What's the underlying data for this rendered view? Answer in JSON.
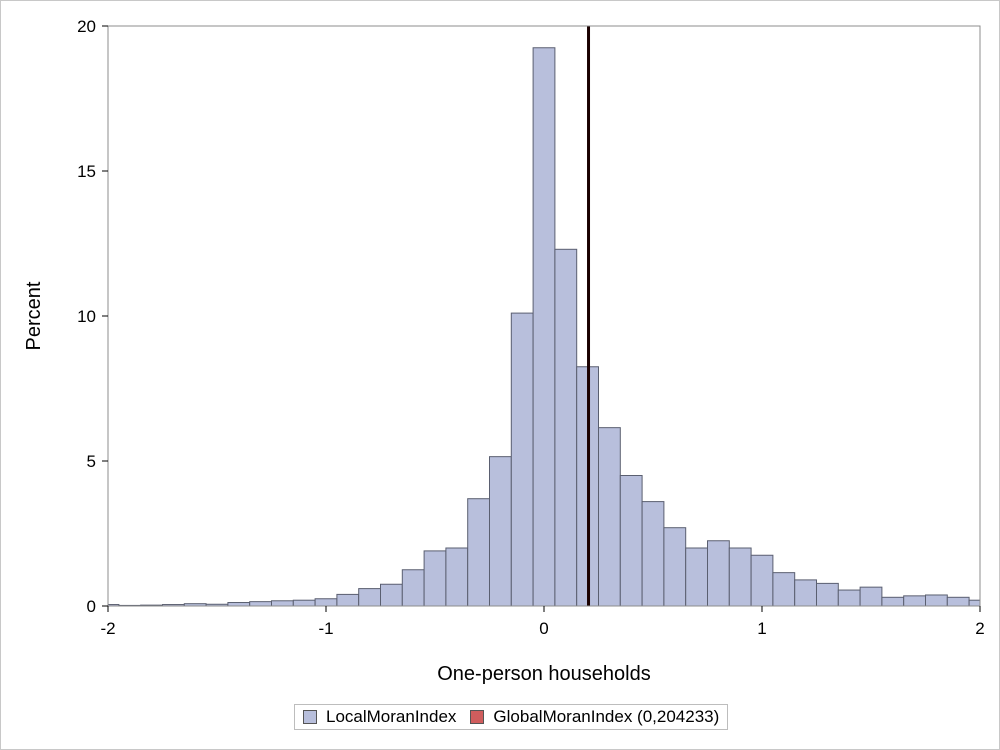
{
  "chart_data": {
    "type": "bar",
    "xlabel": "One-person households",
    "ylabel": "Percent",
    "xlim": [
      -2,
      2
    ],
    "ylim": [
      0,
      20
    ],
    "xticks": [
      "-2",
      "-1",
      "0",
      "1",
      "2"
    ],
    "yticks": [
      "0",
      "5",
      "10",
      "15",
      "20"
    ],
    "bin_width": 0.1,
    "bin_centers": [
      -2.0,
      -1.9,
      -1.8,
      -1.7,
      -1.6,
      -1.5,
      -1.4,
      -1.3,
      -1.2,
      -1.1,
      -1.0,
      -0.9,
      -0.8,
      -0.7,
      -0.6,
      -0.5,
      -0.4,
      -0.3,
      -0.2,
      -0.1,
      0.0,
      0.1,
      0.2,
      0.3,
      0.4,
      0.5,
      0.6,
      0.7,
      0.8,
      0.9,
      1.0,
      1.1,
      1.2,
      1.3,
      1.4,
      1.5,
      1.6,
      1.7,
      1.8,
      1.9,
      2.0
    ],
    "series": [
      {
        "name": "LocalMoranIndex",
        "color": "#b8bfdc",
        "values": [
          0.05,
          0.02,
          0.03,
          0.05,
          0.08,
          0.06,
          0.12,
          0.15,
          0.18,
          0.2,
          0.25,
          0.4,
          0.6,
          0.75,
          1.25,
          1.9,
          2.0,
          3.7,
          5.15,
          10.1,
          19.25,
          12.3,
          8.25,
          6.15,
          4.5,
          3.6,
          2.7,
          2.0,
          2.25,
          2.0,
          1.75,
          1.15,
          0.9,
          0.78,
          0.55,
          0.65,
          0.3,
          0.35,
          0.38,
          0.3,
          0.2
        ]
      }
    ],
    "reference_line": {
      "name": "GlobalMoranIndex",
      "x": 0.204233,
      "color": "#1a0000"
    },
    "legend": {
      "position": "bottom-center",
      "items": [
        {
          "label": "LocalMoranIndex",
          "color": "#b8bfdc"
        },
        {
          "label": "GlobalMoranIndex (0,204233)",
          "color": "#d05d5d"
        }
      ]
    },
    "grid": false
  }
}
